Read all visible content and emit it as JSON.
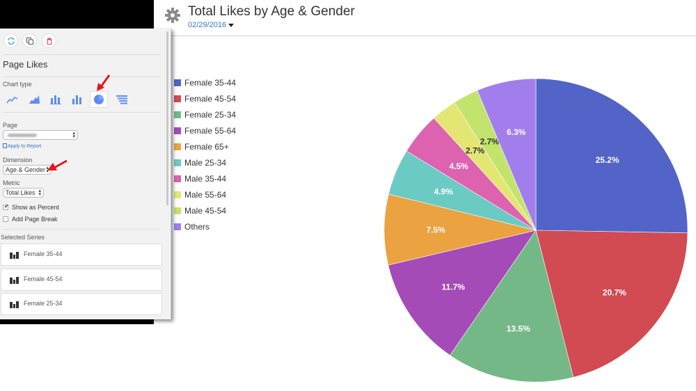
{
  "header": {
    "title": "Total Likes by Age & Gender",
    "date": "02/29/2016"
  },
  "panel": {
    "toolbar": [
      {
        "name": "refresh-icon",
        "color": "#5aaee8"
      },
      {
        "name": "duplicate-icon",
        "color": "#555555"
      },
      {
        "name": "delete-icon",
        "color": "#d9534f"
      }
    ],
    "title": "Page Likes",
    "chart_type_label": "Chart type",
    "chart_types": [
      "line",
      "area",
      "stacked-bar",
      "bar",
      "pie",
      "funnel"
    ],
    "selected_chart_type": "pie",
    "page_label": "Page",
    "page_value": "",
    "apply_label": "Apply to Report",
    "dimension_label": "Dimension",
    "dimension_value": "Age & Gender",
    "metric_label": "Metric",
    "metric_value": "Total Likes",
    "show_percent_label": "Show as Percent",
    "show_percent_checked": true,
    "page_break_label": "Add Page Break",
    "page_break_checked": false,
    "selected_series_label": "Selected Series",
    "selected_series": [
      "Female 35-44",
      "Female 45-54",
      "Female 25-34"
    ]
  },
  "chart_data": {
    "type": "pie",
    "title": "Total Likes by Age & Gender",
    "subtitle": "02/29/2016",
    "legend_position": "left",
    "categories": [
      "Female 35-44",
      "Female 45-54",
      "Female 25-34",
      "Female 55-64",
      "Female 65+",
      "Male 25-34",
      "Male 35-44",
      "Male 55-64",
      "Male 45-54",
      "Others"
    ],
    "values": [
      25.2,
      20.7,
      13.5,
      11.7,
      7.5,
      4.9,
      4.5,
      2.7,
      2.7,
      6.3
    ],
    "labels": [
      "25.2%",
      "20.7%",
      "13.5%",
      "11.7%",
      "7.5%",
      "4.9%",
      "4.5%",
      "2.7%",
      "2.7%",
      "6.3%"
    ],
    "colors": [
      "#5264c8",
      "#d24a52",
      "#74b887",
      "#a44bb8",
      "#eba240",
      "#6ccac4",
      "#dd62b0",
      "#e4e674",
      "#c2e46c",
      "#a27eec"
    ],
    "label_colors": [
      "#ffffff",
      "#ffffff",
      "#ffffff",
      "#ffffff",
      "#ffffff",
      "#ffffff",
      "#ffffff",
      "#333333",
      "#333333",
      "#ffffff"
    ],
    "unit": "%"
  }
}
